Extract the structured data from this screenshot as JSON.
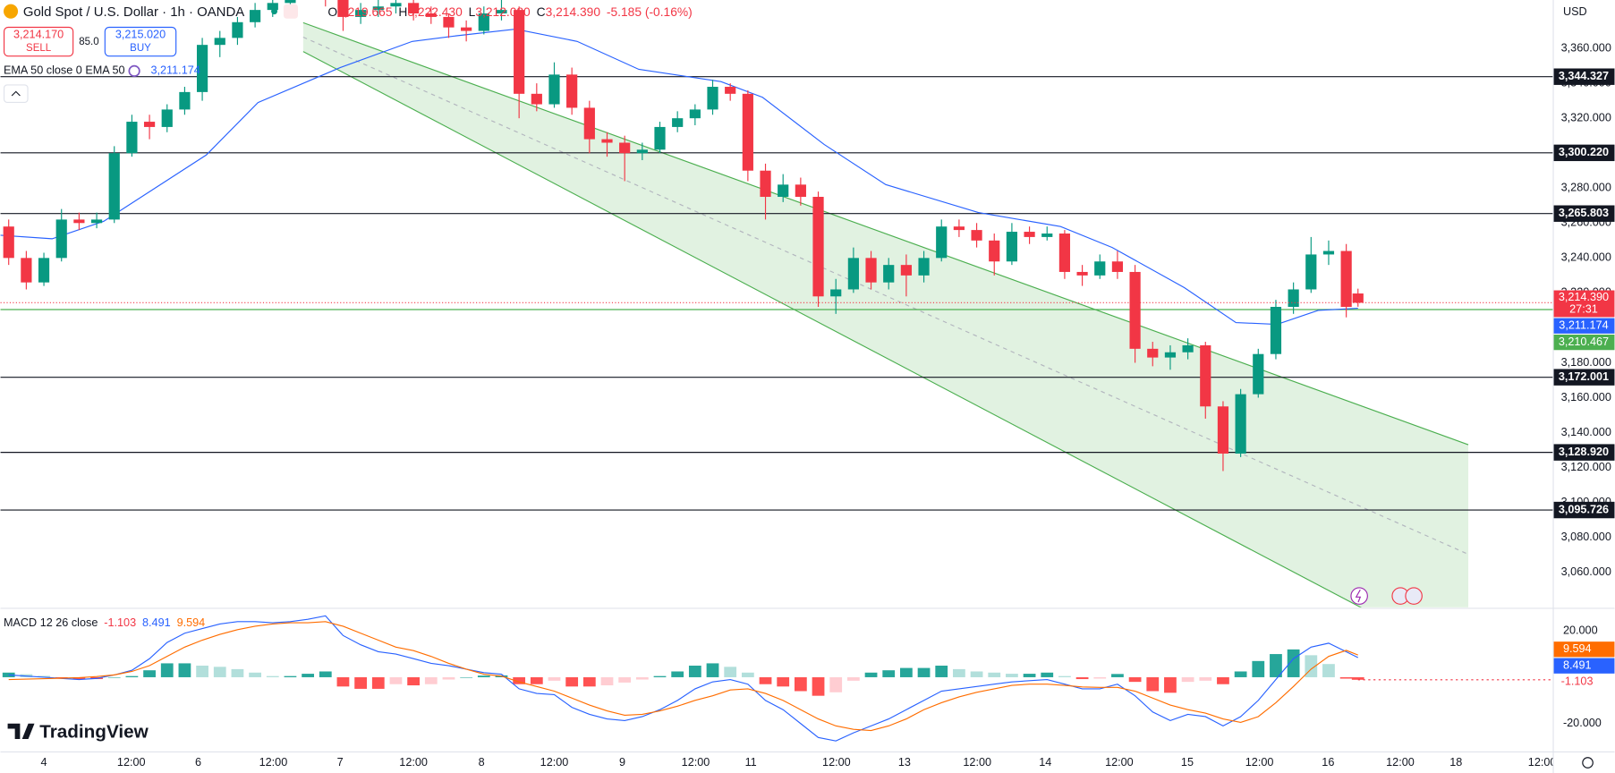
{
  "header": {
    "symbol": "Gold Spot / U.S. Dollar · 1h · OANDA",
    "sell_price": "3,214.170",
    "sell": "SELL",
    "spread": "85.0",
    "buy_price": "3,215.020",
    "buy": "BUY",
    "currency": "USD",
    "brand": "TradingView"
  },
  "chart_data": [
    {
      "type": "candlestick",
      "ohlc_labels": [
        [
          "O",
          "3,219.665"
        ],
        [
          "H",
          "3,222.430"
        ],
        [
          "L",
          "3,212.080"
        ],
        [
          "C",
          "3,214.390"
        ]
      ],
      "change": "-5.185 (-0.16%)",
      "xlim": [
        -7.4,
        257.2
      ],
      "ylim": [
        3040,
        3387.7
      ],
      "xticks": [
        {
          "value": 0,
          "label": "4"
        },
        {
          "value": 14.9,
          "label": "12:00"
        },
        {
          "value": 26.3,
          "label": "6"
        },
        {
          "value": 39.1,
          "label": "12:00"
        },
        {
          "value": 50.5,
          "label": "7"
        },
        {
          "value": 63.0,
          "label": "12:00"
        },
        {
          "value": 74.6,
          "label": "8"
        },
        {
          "value": 87.0,
          "label": "12:00"
        },
        {
          "value": 98.6,
          "label": "9"
        },
        {
          "value": 111.1,
          "label": "12:00"
        },
        {
          "value": 120.5,
          "label": "11"
        },
        {
          "value": 135.1,
          "label": "12:00"
        },
        {
          "value": 146.7,
          "label": "13"
        },
        {
          "value": 159.1,
          "label": "12:00"
        },
        {
          "value": 170.7,
          "label": "14"
        },
        {
          "value": 183.3,
          "label": "12:00"
        },
        {
          "value": 194.9,
          "label": "15"
        },
        {
          "value": 207.2,
          "label": "12:00"
        },
        {
          "value": 218.9,
          "label": "16"
        },
        {
          "value": 231.2,
          "label": "12:00"
        },
        {
          "value": 240.7,
          "label": "18"
        },
        {
          "value": 255.4,
          "label": "12:00"
        }
      ],
      "yticks": [
        {
          "value": 3060,
          "label": "3,060.000"
        },
        {
          "value": 3080,
          "label": "3,080.000"
        },
        {
          "value": 3100,
          "label": "3,100.000"
        },
        {
          "value": 3120,
          "label": "3,120.000"
        },
        {
          "value": 3140,
          "label": "3,140.000"
        },
        {
          "value": 3160,
          "label": "3,160.000"
        },
        {
          "value": 3180,
          "label": "3,180.000"
        },
        {
          "value": 3200,
          "label": "3,200.000"
        },
        {
          "value": 3220,
          "label": "3,220.000"
        },
        {
          "value": 3240,
          "label": "3,240.000"
        },
        {
          "value": 3260,
          "label": "3,260.000"
        },
        {
          "value": 3280,
          "label": "3,280.000"
        },
        {
          "value": 3300,
          "label": "3,300.000"
        },
        {
          "value": 3320,
          "label": "3,320.000"
        },
        {
          "value": 3340,
          "label": "3,340.000"
        },
        {
          "value": 3360,
          "label": "3,360.000"
        }
      ],
      "candles": {
        "up_color": "#089981",
        "down_color": "#f23645",
        "x": [
          -6,
          -3,
          0,
          3,
          6,
          9,
          12,
          15,
          18,
          21,
          24,
          27,
          30,
          33,
          36,
          39,
          42,
          45,
          48,
          51,
          54,
          57,
          60,
          63,
          66,
          69,
          72,
          75,
          78,
          81,
          84,
          87,
          90,
          93,
          96,
          99,
          102,
          105,
          108,
          111,
          114,
          117,
          120,
          123,
          126,
          129,
          132,
          135,
          138,
          141,
          144,
          147,
          150,
          153,
          156,
          159,
          162,
          165,
          168,
          171,
          174,
          177,
          180,
          183,
          186,
          189,
          192,
          195,
          198,
          201,
          204,
          207,
          210,
          213,
          216,
          219,
          222,
          224
        ],
        "open": [
          3258,
          3240,
          3226,
          3240,
          3262,
          3260,
          3262,
          3300,
          3318,
          3315,
          3325,
          3335,
          3362,
          3366,
          3375,
          3382,
          3386,
          3392,
          3395,
          3388,
          3378,
          3382,
          3384,
          3386,
          3380,
          3378,
          3372,
          3370,
          3380,
          3382,
          3334,
          3328,
          3345,
          3326,
          3308,
          3306,
          3300,
          3302,
          3315,
          3320,
          3325,
          3338,
          3334,
          3290,
          3275,
          3282,
          3275,
          3218,
          3222,
          3240,
          3226,
          3236,
          3230,
          3240,
          3258,
          3256,
          3250,
          3238,
          3255,
          3252,
          3254,
          3232,
          3230,
          3238,
          3232,
          3188,
          3183,
          3186,
          3190,
          3155,
          3128,
          3162,
          3185,
          3212,
          3222,
          3242,
          3244,
          3219.665
        ],
        "high": [
          3262,
          3244,
          3243,
          3268,
          3266,
          3266,
          3304,
          3322,
          3322,
          3328,
          3338,
          3366,
          3370,
          3378,
          3386,
          3390,
          3396,
          3400,
          3398,
          3392,
          3386,
          3388,
          3390,
          3388,
          3384,
          3380,
          3376,
          3384,
          3388,
          3384,
          3340,
          3352,
          3349,
          3330,
          3312,
          3310,
          3306,
          3318,
          3324,
          3328,
          3342,
          3340,
          3336,
          3294,
          3288,
          3286,
          3278,
          3228,
          3246,
          3244,
          3240,
          3242,
          3244,
          3262,
          3262,
          3260,
          3254,
          3260,
          3258,
          3258,
          3256,
          3236,
          3242,
          3244,
          3236,
          3192,
          3190,
          3194,
          3192,
          3158,
          3165,
          3188,
          3216,
          3226,
          3252,
          3250,
          3248,
          3222.43
        ],
        "low": [
          3236,
          3222,
          3224,
          3238,
          3256,
          3257,
          3260,
          3298,
          3308,
          3312,
          3322,
          3330,
          3355,
          3362,
          3372,
          3378,
          3382,
          3388,
          3384,
          3370,
          3374,
          3378,
          3380,
          3376,
          3374,
          3366,
          3364,
          3368,
          3376,
          3320,
          3324,
          3326,
          3322,
          3300,
          3298,
          3284,
          3296,
          3300,
          3312,
          3316,
          3322,
          3330,
          3284,
          3262,
          3272,
          3270,
          3212,
          3208,
          3220,
          3222,
          3222,
          3218,
          3226,
          3238,
          3252,
          3246,
          3230,
          3236,
          3248,
          3250,
          3228,
          3224,
          3228,
          3228,
          3180,
          3178,
          3176,
          3182,
          3148,
          3118,
          3126,
          3160,
          3182,
          3208,
          3220,
          3236,
          3206,
          3212.08
        ],
        "close": [
          3240,
          3226,
          3240,
          3262,
          3260,
          3262,
          3300,
          3318,
          3315,
          3325,
          3335,
          3362,
          3366,
          3375,
          3382,
          3386,
          3392,
          3395,
          3388,
          3378,
          3382,
          3384,
          3386,
          3380,
          3378,
          3372,
          3370,
          3380,
          3382,
          3334,
          3328,
          3345,
          3326,
          3308,
          3306,
          3300,
          3302,
          3315,
          3320,
          3325,
          3338,
          3334,
          3290,
          3275,
          3282,
          3275,
          3218,
          3222,
          3240,
          3226,
          3236,
          3230,
          3240,
          3258,
          3256,
          3250,
          3238,
          3255,
          3252,
          3254,
          3232,
          3230,
          3238,
          3232,
          3188,
          3183,
          3186,
          3190,
          3155,
          3128,
          3162,
          3185,
          3212,
          3222,
          3242,
          3244,
          3212,
          3214.39
        ],
        "last_close_label": "3,214.390",
        "countdown": "27:31"
      },
      "ema": {
        "name": "EMA 50 close 0 EMA 50",
        "color": "#2962ff",
        "x": [
          -7.4,
          1.4,
          10.2,
          27.7,
          36.5,
          50.5,
          62.8,
          69.8,
          80.4,
          90.9,
          101.4,
          115.4,
          122.5,
          133,
          143.5,
          159.3,
          173.3,
          182.1,
          194.4,
          203.2,
          210.2,
          217.2,
          224
        ],
        "values": [
          3253,
          3251,
          3261,
          3299,
          3329,
          3349,
          3364,
          3367,
          3371,
          3364,
          3348,
          3341,
          3332,
          3305,
          3282,
          3266,
          3258,
          3246,
          3223,
          3203,
          3202,
          3210,
          3211.174
        ],
        "last_label": "3,211.174"
      },
      "levels": [
        {
          "value": 3344.327,
          "label": "3,344.327"
        },
        {
          "value": 3300.22,
          "label": "3,300.220"
        },
        {
          "value": 3265.803,
          "label": "3,265.803"
        },
        {
          "value": 3172.001,
          "label": "3,172.001"
        },
        {
          "value": 3128.92,
          "label": "3,128.920"
        },
        {
          "value": 3095.726,
          "label": "3,095.726"
        }
      ],
      "level_color": "#131722",
      "support": {
        "value": 3210.467,
        "label": "3,210.467",
        "color": "#4caf50"
      },
      "channel": {
        "x": [
          44.2,
          242.8
        ],
        "upper": [
          3374.7,
          3133.1
        ],
        "lower": [
          3358.2,
          3007.6
        ],
        "color": "#4caf50"
      }
    },
    {
      "type": "macd",
      "legend": "MACD 12 26 close",
      "ylim": [
        -32,
        29.3
      ],
      "yticks": [
        {
          "value": 20,
          "label": "20.000"
        },
        {
          "value": -20,
          "label": "-20.000"
        }
      ],
      "hist": {
        "colors": {
          "up_strong": "#26a69a",
          "up_weak": "#b2dfdb",
          "down_strong": "#ff5252",
          "down_weak": "#ffcdd2"
        },
        "values": [
          2,
          1.3,
          0.6,
          -0.1,
          -0.8,
          -0.8,
          0,
          0.5,
          3,
          6,
          6,
          5,
          4.5,
          3.5,
          2,
          0.5,
          0.5,
          1.5,
          2.5,
          -4,
          -5,
          -5,
          -3,
          -3.5,
          -3,
          -1,
          0,
          0.7,
          0.8,
          -3,
          -3,
          -1.5,
          -4,
          -4,
          -3.5,
          -2.3,
          -1,
          0.5,
          2.5,
          5,
          6,
          4.5,
          2,
          -3,
          -4,
          -6,
          -8,
          -6.5,
          -1.5,
          2,
          3,
          4,
          4,
          5,
          3.5,
          2.5,
          2,
          1.5,
          1.5,
          2,
          0.5,
          -0.8,
          -0.6,
          1.4,
          -2,
          -6,
          -6.7,
          -2,
          -1.5,
          -3,
          2.5,
          7,
          10,
          12,
          9.5,
          5.7,
          -0.6,
          -1.103
        ]
      },
      "macd": {
        "color": "#2962ff",
        "values": [
          1,
          0.5,
          0,
          -0.5,
          -1,
          -0.5,
          1,
          3,
          8,
          15,
          19,
          21,
          23,
          24,
          24,
          23.5,
          24,
          25,
          26.5,
          18,
          14,
          11,
          10,
          8,
          6,
          5,
          3.5,
          2,
          1.3,
          -5,
          -7,
          -7.5,
          -13,
          -16,
          -18,
          -18.7,
          -17,
          -14,
          -10,
          -5,
          -2,
          -1,
          -3,
          -10,
          -14,
          -20,
          -26,
          -27.5,
          -24,
          -21,
          -18,
          -14,
          -10,
          -6,
          -5,
          -4,
          -3,
          -2,
          -1.5,
          -1,
          -3,
          -5,
          -5,
          -3,
          -8,
          -15,
          -18.7,
          -16,
          -17,
          -21,
          -17,
          -10,
          -1,
          8,
          13,
          14.7,
          11,
          8.491
        ]
      },
      "signal": {
        "color": "#ff6d00",
        "values": [
          -1,
          -0.8,
          -0.6,
          -0.4,
          -0.2,
          0.3,
          1,
          2.5,
          5,
          9,
          13,
          16,
          18.5,
          20.5,
          22,
          23,
          23.5,
          23.5,
          24,
          22,
          19,
          16,
          13,
          11.5,
          9,
          6,
          3.5,
          1.3,
          0.5,
          -2,
          -4,
          -6,
          -9,
          -12,
          -14.5,
          -16.4,
          -16,
          -14.5,
          -12.5,
          -10,
          -8,
          -5.5,
          -5,
          -7,
          -10,
          -14,
          -18,
          -21,
          -22.5,
          -23,
          -21,
          -18,
          -14,
          -11,
          -8.5,
          -6.5,
          -5,
          -3.5,
          -3,
          -3,
          -3.5,
          -4.2,
          -4.4,
          -4.4,
          -6,
          -9,
          -12,
          -14,
          -15.5,
          -18,
          -19.5,
          -17,
          -11,
          -4,
          3.5,
          9,
          11.6,
          9.594
        ]
      }
    }
  ]
}
